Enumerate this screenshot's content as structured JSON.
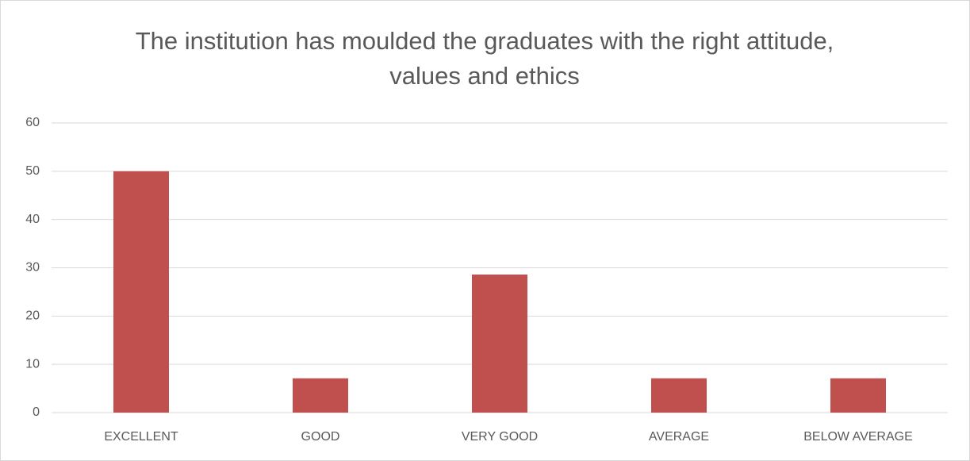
{
  "chart_data": {
    "type": "bar",
    "title": "The institution has moulded the graduates with the right attitude, values and ethics",
    "categories": [
      "EXCELLENT",
      "GOOD",
      "VERY GOOD",
      "AVERAGE",
      "BELOW AVERAGE"
    ],
    "values": [
      50,
      7.1,
      28.6,
      7.1,
      7.1
    ],
    "color": "#c0504d",
    "ylim": [
      0,
      60
    ],
    "yticks": [
      0,
      10,
      20,
      30,
      40,
      50,
      60
    ],
    "grid": true
  }
}
